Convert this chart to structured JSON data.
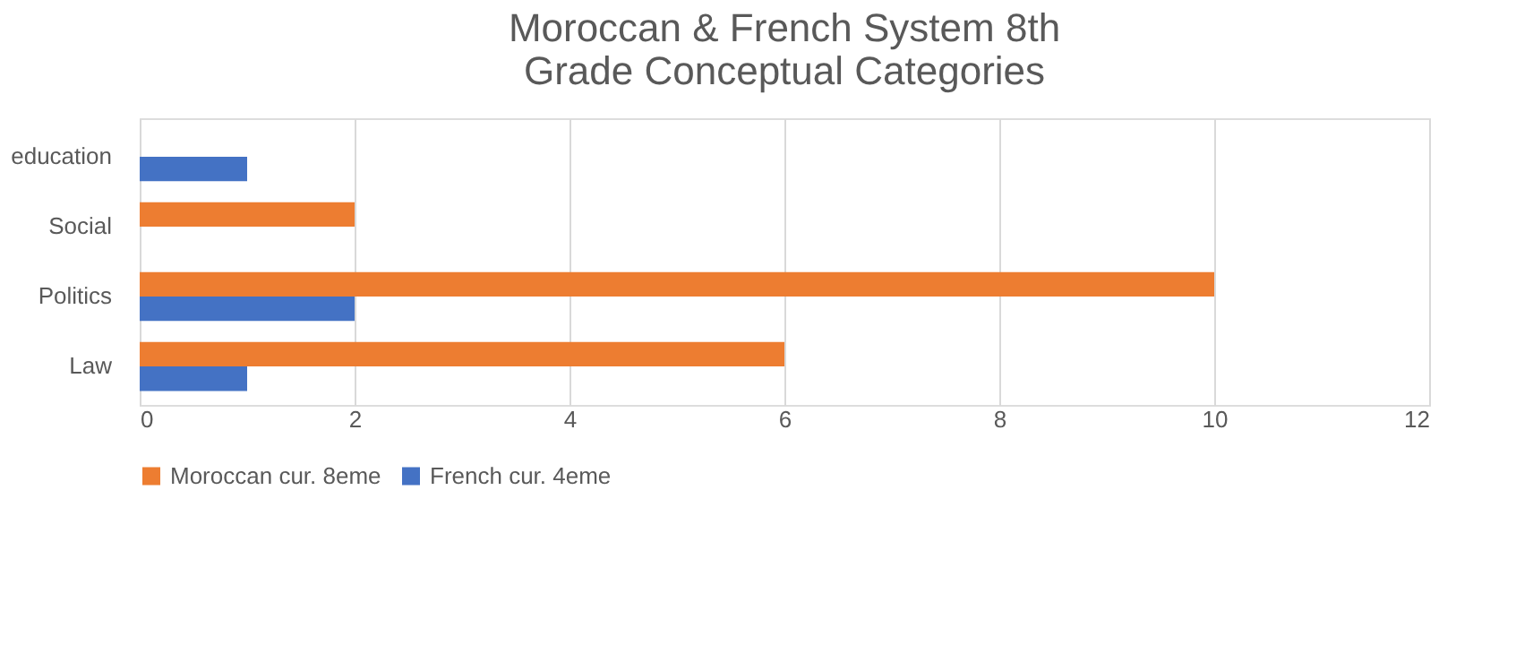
{
  "chart_data": {
    "type": "bar",
    "orientation": "horizontal",
    "title": "Moroccan & French System 8th Grade Conceptual Categories",
    "categories": [
      "education",
      "Social",
      "Politics",
      "Law"
    ],
    "series": [
      {
        "name": "Moroccan cur. 8eme",
        "color": "#ed7d31",
        "values": [
          null,
          2,
          10,
          6
        ]
      },
      {
        "name": "French cur. 4eme",
        "color": "#4472c4",
        "values": [
          1,
          null,
          2,
          1
        ]
      }
    ],
    "xlim": [
      0,
      12
    ],
    "xticks": [
      0,
      2,
      4,
      6,
      8,
      10,
      12
    ],
    "grid": "x",
    "legend": "bottom"
  }
}
